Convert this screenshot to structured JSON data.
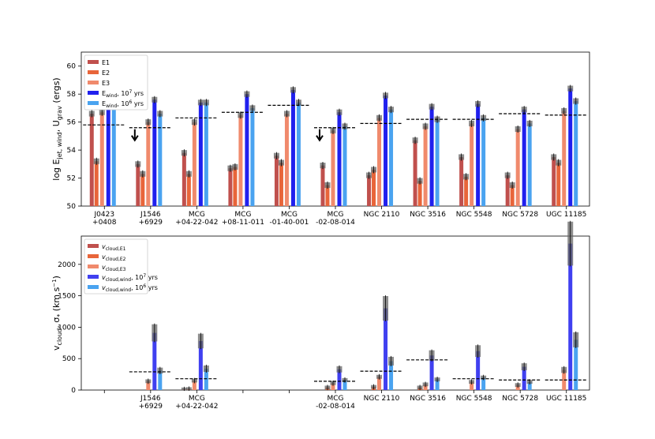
{
  "chart_data": [
    {
      "type": "bar",
      "panel": "top",
      "ylabel": "log E_jet, wind, U_grav (ergs)",
      "ylabel_main": "log E",
      "ylabel_sub": "jet, wind",
      "ylabel_main2": ", U",
      "ylabel_sub2": "grav",
      "ylabel_tail": " (ergs)",
      "ylim": [
        50,
        61
      ],
      "yticks": [
        50,
        52,
        54,
        56,
        58,
        60
      ],
      "legend_position": "upper-left",
      "categories": [
        "J0423\n+0408",
        "J1546\n+6929",
        "MCG\n+04-22-042",
        "MCG\n+08-11-011",
        "MCG\n-01-40-001",
        "MCG\n-02-08-014",
        "NGC 2110",
        "NGC 3516",
        "NGC 5548",
        "NGC 5728",
        "UGC 11185"
      ],
      "series": [
        {
          "name": "E1",
          "color": "#c0504d",
          "values": [
            56.6,
            53.0,
            53.8,
            52.7,
            53.6,
            52.9,
            52.2,
            54.7,
            53.5,
            52.2,
            53.5
          ]
        },
        {
          "name": "E2",
          "color": "#e8653a",
          "values": [
            53.2,
            52.3,
            52.3,
            52.8,
            53.1,
            51.5,
            52.6,
            51.8,
            52.1,
            51.5,
            53.1
          ]
        },
        {
          "name": "E3",
          "color": "#f08a6c",
          "values": [
            56.7,
            56.0,
            56.0,
            56.5,
            56.6,
            55.4,
            56.3,
            55.7,
            55.9,
            55.5,
            56.8
          ]
        },
        {
          "name": "E_wind, 10^7 yrs",
          "name_main": "E",
          "name_sub": "wind",
          "name_tail": ", 10",
          "name_sup": "7",
          "name_end": " yrs",
          "color": "#2020ee",
          "values": [
            58.1,
            57.6,
            57.4,
            58.0,
            58.3,
            56.7,
            57.9,
            57.1,
            57.3,
            56.9,
            58.4
          ]
        },
        {
          "name": "E_wind, 10^6 yrs",
          "name_main": "E",
          "name_sub": "wind",
          "name_tail": ", 10",
          "name_sup": "6",
          "name_end": " yrs",
          "color": "#4aa3f0",
          "values": [
            57.9,
            56.6,
            57.4,
            57.0,
            57.4,
            55.7,
            56.9,
            56.2,
            56.3,
            55.9,
            57.5
          ]
        }
      ],
      "reference_lines": [
        55.8,
        55.6,
        56.3,
        56.7,
        57.2,
        55.6,
        55.9,
        56.2,
        56.2,
        56.6,
        56.5
      ],
      "upper_limit_arrows": [
        false,
        true,
        false,
        false,
        false,
        true,
        false,
        false,
        false,
        false,
        false
      ]
    },
    {
      "type": "bar",
      "panel": "bottom",
      "ylabel": "v_cloud, σ* (km s^-1)",
      "ylim": [
        0,
        2450
      ],
      "yticks": [
        0,
        500,
        1000,
        1500,
        2000
      ],
      "legend_position": "upper-left",
      "categories": [
        "",
        "J1546\n+6929",
        "MCG\n+04-22-042",
        "",
        "",
        "MCG\n-02-08-014",
        "NGC 2110",
        "NGC 3516",
        "NGC 5548",
        "NGC 5728",
        "UGC 11185"
      ],
      "series": [
        {
          "name": "v_cloud,E1",
          "name_main": "v",
          "name_sub": "cloud,E1",
          "color": "#c0504d",
          "values": [
            null,
            null,
            10,
            null,
            null,
            null,
            null,
            null,
            null,
            null,
            null
          ]
        },
        {
          "name": "v_cloud,E2",
          "name_main": "v",
          "name_sub": "cloud,E2",
          "color": "#e8653a",
          "values": [
            null,
            null,
            15,
            null,
            null,
            40,
            50,
            40,
            null,
            null,
            null
          ]
        },
        {
          "name": "v_cloud,E3",
          "name_main": "v",
          "name_sub": "cloud,E3",
          "color": "#f08a6c",
          "values": [
            null,
            140,
            150,
            null,
            null,
            110,
            210,
            90,
            130,
            80,
            320
          ]
        },
        {
          "name": "v_cloud,wind, 10^7 yrs",
          "name_main": "v",
          "name_sub": "cloud,wind",
          "name_tail": ", 10",
          "name_sup": "7",
          "name_end": " yrs",
          "color": "#4040f0",
          "values": [
            null,
            910,
            780,
            null,
            null,
            330,
            1300,
            550,
            620,
            370,
            2330
          ]
        },
        {
          "name": "v_cloud,wind, 10^6 yrs",
          "name_main": "v",
          "name_sub": "cloud,wind",
          "name_tail": ", 10",
          "name_sup": "6",
          "name_end": " yrs",
          "color": "#4aa3f0",
          "values": [
            null,
            310,
            340,
            null,
            null,
            160,
            460,
            170,
            200,
            130,
            800
          ]
        }
      ],
      "reference_lines": [
        null,
        290,
        180,
        null,
        null,
        140,
        300,
        480,
        180,
        160,
        160
      ]
    }
  ]
}
